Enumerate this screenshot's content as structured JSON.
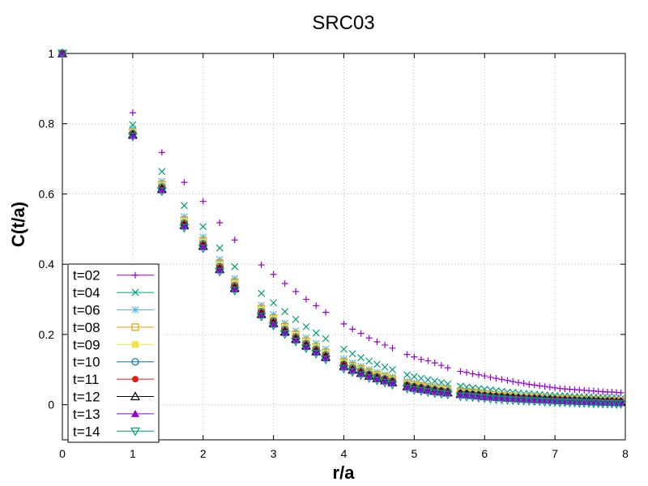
{
  "chart_data": {
    "type": "scatter",
    "title": "SRC03",
    "xlabel": "r/a",
    "ylabel": "C(t/a)",
    "xlim": [
      0,
      8
    ],
    "ylim": [
      -0.1,
      1
    ],
    "xticks": [
      "0",
      "1",
      "2",
      "3",
      "4",
      "5",
      "6",
      "7",
      "8"
    ],
    "yticks": [
      "0",
      "0.2",
      "0.4",
      "0.6",
      "0.8",
      "1"
    ],
    "grid": true,
    "legend_position": "bottom-left",
    "r": [
      0,
      1,
      1.414,
      1.732,
      2,
      2.236,
      2.449,
      2.828,
      3,
      3.162,
      3.317,
      3.464,
      3.606,
      3.742,
      4,
      4.123,
      4.243,
      4.359,
      4.472,
      4.583,
      4.69,
      4.899,
      5,
      5.099,
      5.196,
      5.292,
      5.385,
      5.477,
      5.657,
      5.745,
      5.831,
      5.916,
      6,
      6.083,
      6.164,
      6.245,
      6.325,
      6.403,
      6.481,
      6.557,
      6.633,
      6.708,
      6.782,
      6.856,
      6.928,
      7,
      7.071,
      7.141,
      7.211,
      7.28,
      7.348,
      7.416,
      7.483,
      7.55,
      7.616,
      7.681,
      7.746,
      7.81,
      7.874,
      7.937
    ],
    "series": [
      {
        "name": "t=02",
        "color": "#9400d3",
        "marker": "plus",
        "values": [
          1,
          0.831,
          0.718,
          0.633,
          0.579,
          0.518,
          0.469,
          0.398,
          0.371,
          0.345,
          0.322,
          0.3,
          0.282,
          0.263,
          0.23,
          0.215,
          0.203,
          0.19,
          0.179,
          0.17,
          0.161,
          0.143,
          0.136,
          0.129,
          0.125,
          0.119,
          0.112,
          0.105,
          0.095,
          0.092,
          0.088,
          0.085,
          0.082,
          0.078,
          0.075,
          0.072,
          0.069,
          0.066,
          0.063,
          0.061,
          0.058,
          0.056,
          0.054,
          0.052,
          0.05,
          0.048,
          0.046,
          0.045,
          0.044,
          0.043,
          0.042,
          0.041,
          0.04,
          0.039,
          0.038,
          0.037,
          0.036,
          0.036,
          0.035,
          0.034
        ]
      },
      {
        "name": "t=04",
        "color": "#009e73",
        "marker": "cross",
        "values": [
          1,
          0.797,
          0.664,
          0.567,
          0.507,
          0.446,
          0.393,
          0.317,
          0.29,
          0.265,
          0.243,
          0.222,
          0.204,
          0.188,
          0.158,
          0.145,
          0.134,
          0.124,
          0.115,
          0.107,
          0.1,
          0.085,
          0.08,
          0.075,
          0.071,
          0.067,
          0.063,
          0.059,
          0.053,
          0.05,
          0.048,
          0.046,
          0.044,
          0.042,
          0.04,
          0.038,
          0.036,
          0.035,
          0.033,
          0.032,
          0.031,
          0.03,
          0.029,
          0.028,
          0.027,
          0.026,
          0.025,
          0.025,
          0.024,
          0.023,
          0.023,
          0.022,
          0.022,
          0.021,
          0.021,
          0.02,
          0.02,
          0.019,
          0.019,
          0.018
        ]
      },
      {
        "name": "t=06",
        "color": "#56b4e9",
        "marker": "star",
        "values": [
          1,
          0.785,
          0.636,
          0.535,
          0.477,
          0.413,
          0.359,
          0.283,
          0.257,
          0.232,
          0.21,
          0.19,
          0.174,
          0.158,
          0.13,
          0.119,
          0.109,
          0.1,
          0.092,
          0.085,
          0.079,
          0.066,
          0.062,
          0.058,
          0.055,
          0.052,
          0.049,
          0.046,
          0.041,
          0.039,
          0.037,
          0.035,
          0.033,
          0.032,
          0.03,
          0.029,
          0.027,
          0.026,
          0.025,
          0.024,
          0.023,
          0.022,
          0.021,
          0.02,
          0.02,
          0.019,
          0.018,
          0.018,
          0.017,
          0.017,
          0.016,
          0.016,
          0.015,
          0.015,
          0.014,
          0.014,
          0.014,
          0.013,
          0.013,
          0.013
        ]
      },
      {
        "name": "t=08",
        "color": "#e69f00",
        "marker": "square-open",
        "values": [
          1,
          0.777,
          0.627,
          0.525,
          0.467,
          0.402,
          0.348,
          0.273,
          0.247,
          0.222,
          0.2,
          0.181,
          0.165,
          0.149,
          0.122,
          0.111,
          0.102,
          0.093,
          0.085,
          0.079,
          0.073,
          0.061,
          0.057,
          0.053,
          0.05,
          0.047,
          0.044,
          0.042,
          0.037,
          0.035,
          0.033,
          0.032,
          0.03,
          0.028,
          0.027,
          0.026,
          0.025,
          0.024,
          0.022,
          0.021,
          0.021,
          0.02,
          0.019,
          0.018,
          0.018,
          0.017,
          0.016,
          0.016,
          0.015,
          0.015,
          0.014,
          0.014,
          0.013,
          0.013,
          0.013,
          0.012,
          0.012,
          0.012,
          0.011,
          0.011
        ]
      },
      {
        "name": "t=09",
        "color": "#f0e442",
        "marker": "square",
        "values": [
          1,
          0.775,
          0.624,
          0.522,
          0.463,
          0.398,
          0.344,
          0.27,
          0.244,
          0.219,
          0.197,
          0.178,
          0.162,
          0.146,
          0.119,
          0.108,
          0.099,
          0.09,
          0.083,
          0.077,
          0.071,
          0.059,
          0.055,
          0.051,
          0.048,
          0.045,
          0.043,
          0.04,
          0.035,
          0.034,
          0.032,
          0.03,
          0.029,
          0.027,
          0.026,
          0.025,
          0.024,
          0.023,
          0.022,
          0.021,
          0.02,
          0.019,
          0.018,
          0.018,
          0.017,
          0.016,
          0.016,
          0.015,
          0.015,
          0.014,
          0.014,
          0.013,
          0.013,
          0.012,
          0.012,
          0.012,
          0.011,
          0.011,
          0.011,
          0.01
        ]
      },
      {
        "name": "t=10",
        "color": "#0072b2",
        "marker": "circle-open",
        "values": [
          1,
          0.772,
          0.62,
          0.517,
          0.458,
          0.393,
          0.339,
          0.265,
          0.239,
          0.214,
          0.193,
          0.174,
          0.158,
          0.142,
          0.115,
          0.105,
          0.096,
          0.087,
          0.08,
          0.074,
          0.068,
          0.056,
          0.052,
          0.049,
          0.046,
          0.043,
          0.04,
          0.038,
          0.033,
          0.032,
          0.03,
          0.028,
          0.027,
          0.025,
          0.024,
          0.023,
          0.022,
          0.021,
          0.02,
          0.019,
          0.018,
          0.018,
          0.017,
          0.016,
          0.016,
          0.015,
          0.014,
          0.014,
          0.013,
          0.013,
          0.012,
          0.012,
          0.012,
          0.011,
          0.011,
          0.01,
          0.01,
          0.01,
          0.009,
          0.009
        ]
      },
      {
        "name": "t=11",
        "color": "#e51e10",
        "marker": "circle",
        "values": [
          1,
          0.77,
          0.617,
          0.514,
          0.455,
          0.39,
          0.336,
          0.262,
          0.236,
          0.211,
          0.19,
          0.171,
          0.155,
          0.139,
          0.113,
          0.102,
          0.093,
          0.085,
          0.078,
          0.072,
          0.066,
          0.054,
          0.05,
          0.047,
          0.044,
          0.041,
          0.039,
          0.036,
          0.032,
          0.03,
          0.029,
          0.027,
          0.026,
          0.024,
          0.023,
          0.022,
          0.021,
          0.02,
          0.019,
          0.018,
          0.017,
          0.017,
          0.016,
          0.015,
          0.015,
          0.014,
          0.013,
          0.013,
          0.012,
          0.012,
          0.011,
          0.011,
          0.011,
          0.01,
          0.01,
          0.01,
          0.009,
          0.009,
          0.009,
          0.008
        ]
      },
      {
        "name": "t=12",
        "color": "#000000",
        "marker": "triangle-open",
        "values": [
          1,
          0.768,
          0.614,
          0.511,
          0.452,
          0.386,
          0.332,
          0.258,
          0.232,
          0.208,
          0.187,
          0.168,
          0.152,
          0.136,
          0.11,
          0.099,
          0.09,
          0.082,
          0.075,
          0.069,
          0.063,
          0.052,
          0.048,
          0.045,
          0.042,
          0.039,
          0.037,
          0.034,
          0.03,
          0.029,
          0.027,
          0.026,
          0.024,
          0.023,
          0.022,
          0.021,
          0.02,
          0.019,
          0.018,
          0.017,
          0.016,
          0.016,
          0.015,
          0.014,
          0.014,
          0.013,
          0.012,
          0.012,
          0.011,
          0.011,
          0.01,
          0.01,
          0.01,
          0.009,
          0.009,
          0.008,
          0.008,
          0.008,
          0.007,
          0.007
        ]
      },
      {
        "name": "t=13",
        "color": "#9400d3",
        "marker": "triangle",
        "values": [
          1,
          0.766,
          0.611,
          0.508,
          0.449,
          0.383,
          0.329,
          0.255,
          0.229,
          0.205,
          0.184,
          0.165,
          0.149,
          0.133,
          0.107,
          0.097,
          0.088,
          0.08,
          0.073,
          0.067,
          0.061,
          0.05,
          0.046,
          0.043,
          0.04,
          0.037,
          0.035,
          0.033,
          0.028,
          0.027,
          0.026,
          0.024,
          0.023,
          0.021,
          0.02,
          0.019,
          0.018,
          0.017,
          0.016,
          0.016,
          0.015,
          0.014,
          0.014,
          0.013,
          0.012,
          0.012,
          0.011,
          0.011,
          0.01,
          0.01,
          0.009,
          0.009,
          0.009,
          0.008,
          0.008,
          0.007,
          0.007,
          0.007,
          0.006,
          0.006
        ]
      },
      {
        "name": "t=14",
        "color": "#009e73",
        "marker": "triangle-down-open",
        "values": [
          1,
          0.764,
          0.608,
          0.504,
          0.445,
          0.379,
          0.325,
          0.251,
          0.225,
          0.201,
          0.18,
          0.161,
          0.145,
          0.129,
          0.103,
          0.093,
          0.084,
          0.076,
          0.069,
          0.063,
          0.057,
          0.046,
          0.042,
          0.039,
          0.036,
          0.033,
          0.031,
          0.029,
          0.024,
          0.023,
          0.022,
          0.02,
          0.019,
          0.017,
          0.016,
          0.015,
          0.014,
          0.013,
          0.012,
          0.012,
          0.011,
          0.01,
          0.01,
          0.009,
          0.008,
          0.008,
          0.007,
          0.007,
          0.006,
          0.006,
          0.005,
          0.005,
          0.005,
          0.004,
          0.004,
          0.003,
          0.003,
          0.003,
          0.002,
          0.002
        ]
      }
    ]
  }
}
